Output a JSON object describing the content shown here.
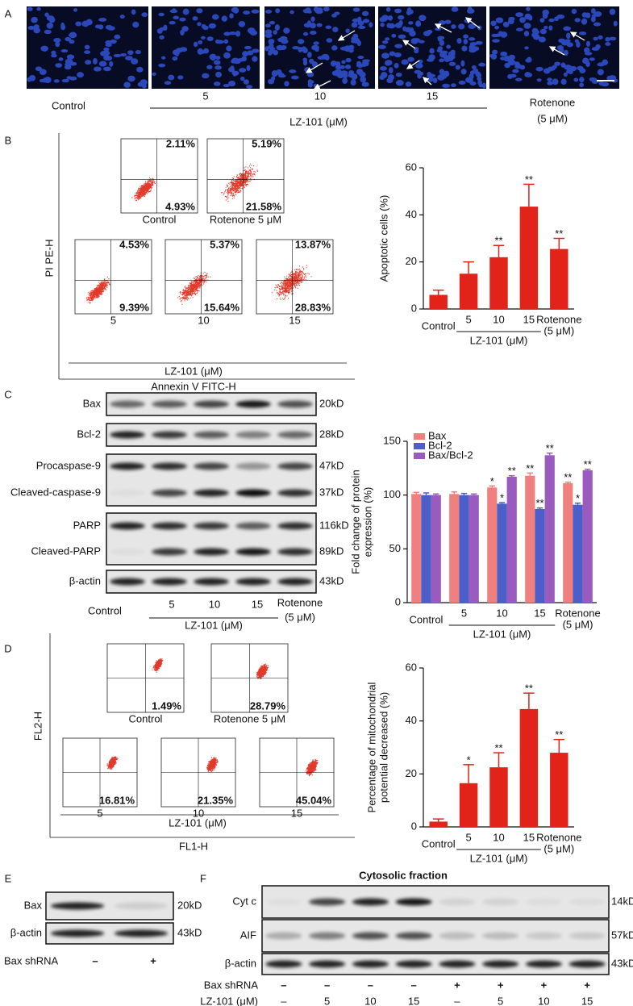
{
  "panels": {
    "a": {
      "letter": "A",
      "lanes": [
        "Control",
        "5",
        "10",
        "15"
      ],
      "group_label": "LZ-101 (μM)",
      "rotenone": "Rotenone",
      "rotenone_dose": "(5 μM)"
    },
    "b": {
      "letter": "B",
      "y_label": "PI PE-H",
      "x_label": "Annexin V FITC-H",
      "group_label": "LZ-101 (μM)",
      "plots": [
        {
          "label": "Control",
          "upper_right": "2.11%",
          "lower_right": "4.93%"
        },
        {
          "label": "Rotenone 5 μM",
          "upper_right": "5.19%",
          "lower_right": "21.58%"
        },
        {
          "label": "5",
          "upper_right": "4.53%",
          "lower_right": "9.39%"
        },
        {
          "label": "10",
          "upper_right": "5.37%",
          "lower_right": "15.64%"
        },
        {
          "label": "15",
          "upper_right": "13.87%",
          "lower_right": "28.83%"
        }
      ]
    },
    "c": {
      "letter": "C",
      "blots": [
        {
          "labels": [
            "Bax"
          ],
          "sizes": [
            "20kD"
          ]
        },
        {
          "labels": [
            "Bcl-2"
          ],
          "sizes": [
            "28kD"
          ]
        },
        {
          "labels": [
            "Procaspase-9",
            "Cleaved-caspase-9"
          ],
          "sizes": [
            "47kD",
            "37kD"
          ]
        },
        {
          "labels": [
            "PARP",
            "Cleaved-PARP"
          ],
          "sizes": [
            "116kD",
            "89kD"
          ]
        },
        {
          "labels": [
            "β-actin"
          ],
          "sizes": [
            "43kD"
          ]
        }
      ],
      "lanes": [
        "Control",
        "5",
        "10",
        "15",
        "Rotenone"
      ],
      "rotenone_dose": "(5 μM)",
      "group_label": "LZ-101 (μM)"
    },
    "d": {
      "letter": "D",
      "y_label": "FL2-H",
      "x_label": "FL1-H",
      "group_label": "LZ-101 (μM)",
      "plots": [
        {
          "label": "Control",
          "lower_right": "1.49%"
        },
        {
          "label": "Rotenone 5 μM",
          "lower_right": "28.79%"
        },
        {
          "label": "5",
          "lower_right": "16.81%"
        },
        {
          "label": "10",
          "lower_right": "21.35%"
        },
        {
          "label": "15",
          "lower_right": "45.04%"
        }
      ]
    },
    "e": {
      "letter": "E",
      "blots": [
        {
          "label": "Bax",
          "size": "20kD"
        },
        {
          "label": "β-actin",
          "size": "43kD"
        }
      ],
      "row_label": "Bax shRNA",
      "signs": [
        "–",
        "+"
      ]
    },
    "f": {
      "letter": "F",
      "title": "Cytosolic fraction",
      "blots": [
        {
          "label": "Cyt c",
          "size": "14kD"
        },
        {
          "label": "AIF",
          "size": "57kD"
        },
        {
          "label": "β-actin",
          "size": "43kD"
        }
      ],
      "rows": [
        {
          "label": "Bax shRNA",
          "values": [
            "–",
            "–",
            "–",
            "–",
            "+",
            "+",
            "+",
            "+"
          ]
        },
        {
          "label": "LZ-101 (μM)",
          "values": [
            "–",
            "5",
            "10",
            "15",
            "–",
            "5",
            "10",
            "15"
          ]
        }
      ]
    }
  },
  "chart_data": [
    {
      "type": "bar",
      "y_label": "Apoptotic cells (%)",
      "categories": [
        "Control",
        "5",
        "10",
        "15",
        "Rotenone"
      ],
      "values": [
        6,
        15,
        22,
        43.5,
        25.5
      ],
      "errors": [
        2,
        5,
        5,
        9.5,
        4.5
      ],
      "annotations": [
        null,
        null,
        "**",
        "**",
        "**"
      ],
      "color": "#e2231a",
      "ylim": [
        0,
        60
      ],
      "yticks": [
        0,
        20,
        40,
        60
      ],
      "group_label": "LZ-101 (μM)",
      "rotenone_dose": "(5 μM)"
    },
    {
      "type": "grouped_bar",
      "y_label": [
        "Fold change of protein",
        "expression (%)"
      ],
      "categories": [
        "Control",
        "5",
        "10",
        "15",
        "Rotenone"
      ],
      "series": [
        {
          "name": "Bax",
          "color": "#f08080",
          "values": [
            101,
            101,
            107,
            118,
            111
          ],
          "errors": [
            1.5,
            2,
            1.5,
            2.5,
            1
          ],
          "annotations": [
            null,
            null,
            "*",
            "**",
            "**"
          ]
        },
        {
          "name": "Bcl-2",
          "color": "#4c5ec8",
          "values": [
            100,
            100,
            92,
            87,
            91
          ],
          "errors": [
            2,
            1.5,
            1,
            1,
            1.5
          ],
          "annotations": [
            null,
            null,
            "*",
            "**",
            "*"
          ]
        },
        {
          "name": "Bax/Bcl-2",
          "color": "#9a5bbf",
          "values": [
            100,
            100,
            117,
            137,
            123
          ],
          "errors": [
            1,
            1,
            1,
            2,
            1
          ],
          "annotations": [
            null,
            null,
            "**",
            "**",
            "**"
          ]
        }
      ],
      "ylim": [
        0,
        150
      ],
      "yticks": [
        0,
        50,
        100,
        150
      ],
      "legend": "upper left",
      "group_label": "LZ-101 (μM)",
      "rotenone_dose": "(5 μM)"
    },
    {
      "type": "bar",
      "y_label": [
        "Percentage of mitochondrial",
        "potential decreased (%)"
      ],
      "categories": [
        "Control",
        "5",
        "10",
        "15",
        "Rotenone"
      ],
      "values": [
        2,
        16.5,
        22.5,
        44.5,
        28
      ],
      "errors": [
        1,
        7,
        5.5,
        6,
        5
      ],
      "annotations": [
        null,
        "*",
        "**",
        "**",
        "**"
      ],
      "color": "#e2231a",
      "ylim": [
        0,
        60
      ],
      "yticks": [
        0,
        20,
        40,
        60
      ],
      "group_label": "LZ-101 (μM)",
      "rotenone_dose": "(5 μM)"
    }
  ]
}
